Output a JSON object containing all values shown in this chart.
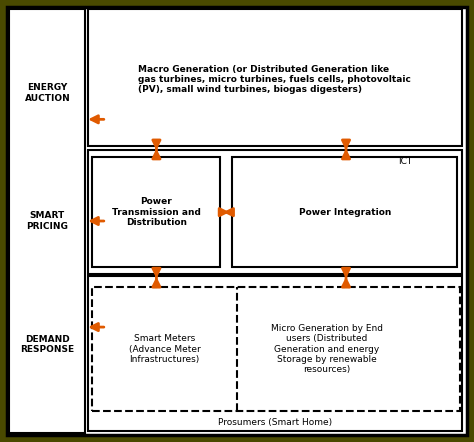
{
  "fig_width": 4.74,
  "fig_height": 4.42,
  "dpi": 100,
  "bg_color": "#4a4a00",
  "box_edge_color": "#000000",
  "arrow_color": "#e05a00",
  "left_panel_label1": "ENERGY\nAUCTION",
  "left_panel_label2": "SMART\nPRICING",
  "left_panel_label3": "DEMAND\nRESPONSE",
  "macro_gen_text": "Macro Generation (or Distributed Generation like\ngas turbines, micro turbines, fuels cells, photovoltaic\n(PV), small wind turbines, biogas digesters)",
  "power_trans_text": "Power\nTransmission and\nDistribution",
  "power_int_text": "Power Integration",
  "smart_meters_text": "Smart Meters\n(Advance Meter\nInfrastructures)",
  "micro_gen_text": "Micro Generation by End\nusers (Distributed\nGeneration and energy\nStorage by renewable\nresources)",
  "prosumers_text": "Prosumers (Smart Home)",
  "ict_text": "ICT",
  "font_size_main": 6.5,
  "font_size_labels": 6.5
}
